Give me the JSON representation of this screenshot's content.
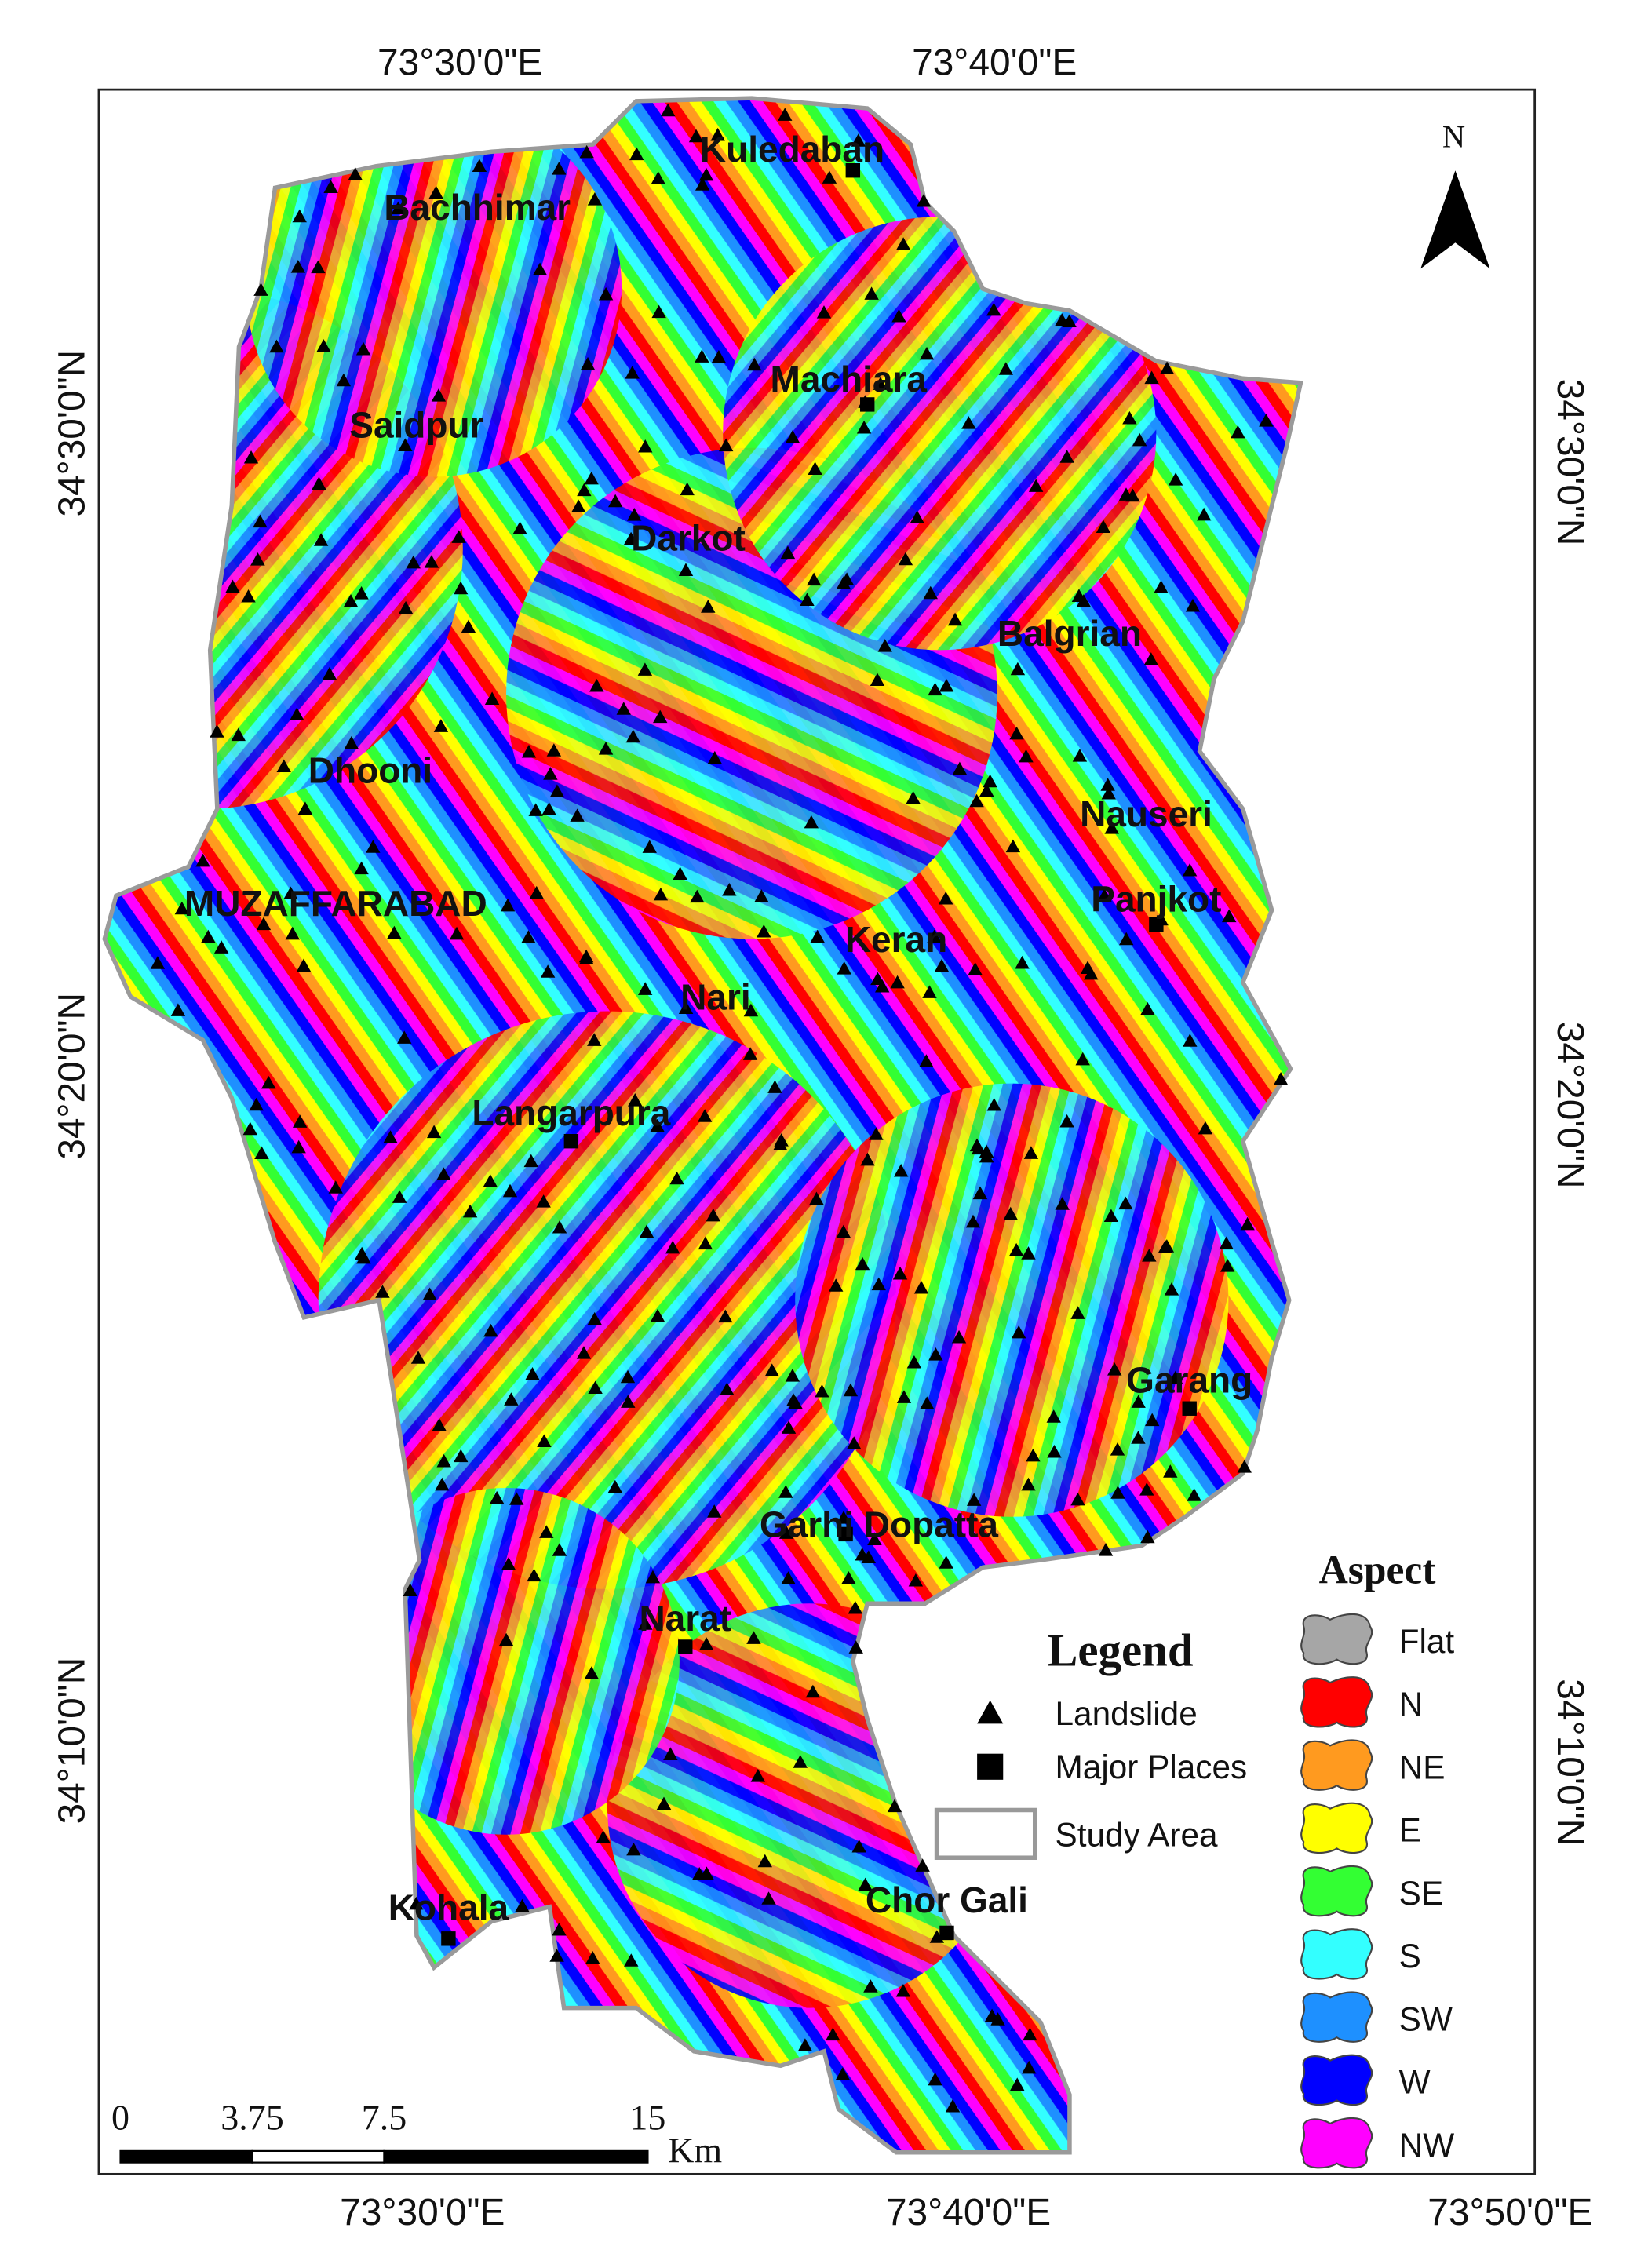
{
  "map": {
    "top_labels": [
      "73°30'0\"E",
      "73°40'0\"E"
    ],
    "bottom_labels": [
      "73°30'0\"E",
      "73°40'0\"E",
      "73°50'0\"E"
    ],
    "left_labels": [
      "34°30'0\"N",
      "34°20'0\"N",
      "34°10'0\"N"
    ],
    "right_labels": [
      "34°30'0\"N",
      "34°20'0\"N",
      "34°10'0\"N"
    ],
    "north": "N",
    "places": [
      "Kuledaban",
      "Bachhimar",
      "Machiara",
      "Saidpur",
      "Darkot",
      "Balgrian",
      "Dhooni",
      "Nauseri",
      "MUZAFFARABAD",
      "Panjkot",
      "Keran",
      "Nari",
      "Langarpura",
      "Garang",
      "Garhi Dopatta",
      "Narat",
      "Kohala",
      "Chor Gali"
    ],
    "legend": {
      "title": "Legend",
      "items": [
        "Landslide",
        "Major Places",
        "Study Area"
      ]
    },
    "aspect": {
      "title": "Aspect",
      "classes": [
        {
          "label": "Flat",
          "color": "#a6a6a6"
        },
        {
          "label": "N",
          "color": "#ff0000"
        },
        {
          "label": "NE",
          "color": "#ff9a1f"
        },
        {
          "label": "E",
          "color": "#ffff00"
        },
        {
          "label": "SE",
          "color": "#33ff33"
        },
        {
          "label": "S",
          "color": "#33ffff"
        },
        {
          "label": "SW",
          "color": "#1e90ff"
        },
        {
          "label": "W",
          "color": "#0000ff"
        },
        {
          "label": "NW",
          "color": "#ff00ff"
        }
      ]
    },
    "scale_bar": {
      "ticks": [
        0,
        3.75,
        7.5,
        15
      ],
      "unit": "Km"
    }
  }
}
